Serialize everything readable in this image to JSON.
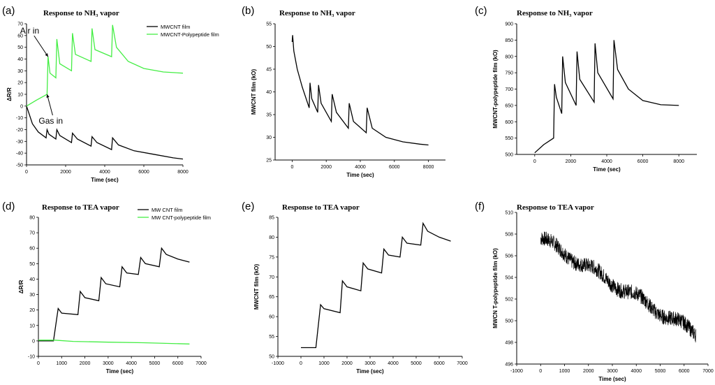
{
  "chart_data": [
    {
      "id": "a",
      "panel": "(a)",
      "type": "line",
      "title": "Response to NH₃ vapor",
      "xlabel": "Time (sec)",
      "ylabel": "ΔR/R",
      "xlim": [
        0,
        8000
      ],
      "ylim": [
        -50,
        70
      ],
      "xticks": [
        0,
        2000,
        4000,
        6000,
        8000
      ],
      "yticks": [
        -50,
        -40,
        -30,
        -20,
        -10,
        0,
        10,
        20,
        30,
        40,
        50,
        60,
        70
      ],
      "legend": "top-right",
      "series": [
        {
          "name": "MWCNT film",
          "color": "#000000",
          "points": [
            [
              0,
              0
            ],
            [
              300,
              -15
            ],
            [
              600,
              -22
            ],
            [
              1000,
              -27
            ],
            [
              1050,
              -20
            ],
            [
              1150,
              -24
            ],
            [
              1500,
              -28
            ],
            [
              1550,
              -20
            ],
            [
              1700,
              -25
            ],
            [
              2300,
              -31
            ],
            [
              2350,
              -23
            ],
            [
              2600,
              -28
            ],
            [
              3300,
              -34
            ],
            [
              3350,
              -26
            ],
            [
              3600,
              -31
            ],
            [
              4350,
              -37
            ],
            [
              4400,
              -27
            ],
            [
              4700,
              -33
            ],
            [
              5500,
              -38
            ],
            [
              6500,
              -41
            ],
            [
              7500,
              -44
            ],
            [
              8000,
              -45
            ]
          ]
        },
        {
          "name": "MWCNT-Polypeptide film",
          "color": "#44ee44",
          "points": [
            [
              0,
              0
            ],
            [
              500,
              5
            ],
            [
              1050,
              10
            ],
            [
              1100,
              42
            ],
            [
              1200,
              28
            ],
            [
              1500,
              24
            ],
            [
              1550,
              57
            ],
            [
              1700,
              36
            ],
            [
              2300,
              30
            ],
            [
              2350,
              62
            ],
            [
              2500,
              44
            ],
            [
              3300,
              38
            ],
            [
              3350,
              66
            ],
            [
              3500,
              48
            ],
            [
              4350,
              42
            ],
            [
              4400,
              69
            ],
            [
              4600,
              50
            ],
            [
              5200,
              38
            ],
            [
              6000,
              32
            ],
            [
              7000,
              29
            ],
            [
              8000,
              28
            ]
          ]
        }
      ],
      "annotations": [
        {
          "text": "Air in",
          "x": 1100,
          "y": 42
        },
        {
          "text": "Gas in",
          "x": 1050,
          "y": 10
        }
      ]
    },
    {
      "id": "b",
      "panel": "(b)",
      "type": "line",
      "title": "Response to NH₃ vapor",
      "xlabel": "Time (sec)",
      "ylabel": "MWCNT film (kO)",
      "xlim": [
        -1000,
        9000
      ],
      "ylim": [
        25,
        55
      ],
      "xticks": [
        0,
        2000,
        4000,
        6000,
        8000
      ],
      "yticks": [
        25,
        30,
        35,
        40,
        45,
        50,
        55
      ],
      "series": [
        {
          "name": "MWCNT film",
          "color": "#000000",
          "points": [
            [
              0,
              51
            ],
            [
              30,
              52.5
            ],
            [
              100,
              49
            ],
            [
              300,
              45
            ],
            [
              600,
              41
            ],
            [
              1000,
              36.5
            ],
            [
              1050,
              42
            ],
            [
              1150,
              38.5
            ],
            [
              1500,
              35.5
            ],
            [
              1550,
              41.5
            ],
            [
              1700,
              37.5
            ],
            [
              2300,
              33.5
            ],
            [
              2350,
              39.5
            ],
            [
              2600,
              35.5
            ],
            [
              3300,
              32
            ],
            [
              3350,
              37.5
            ],
            [
              3600,
              33.5
            ],
            [
              4350,
              31
            ],
            [
              4400,
              36.5
            ],
            [
              4700,
              32
            ],
            [
              5500,
              30
            ],
            [
              6500,
              29
            ],
            [
              7500,
              28.5
            ],
            [
              8000,
              28.3
            ]
          ]
        }
      ]
    },
    {
      "id": "c",
      "panel": "(c)",
      "type": "line",
      "title": "Response to NH₃ vapor",
      "xlabel": "Time (sec)",
      "ylabel": "MWCNT-polypeptide film (kO)",
      "xlim": [
        -1000,
        9000
      ],
      "ylim": [
        500,
        900
      ],
      "xticks": [
        0,
        2000,
        4000,
        6000,
        8000
      ],
      "yticks": [
        500,
        550,
        600,
        650,
        700,
        750,
        800,
        850,
        900
      ],
      "series": [
        {
          "name": "MWCNT-polypeptide film",
          "color": "#000000",
          "points": [
            [
              0,
              505
            ],
            [
              500,
              530
            ],
            [
              1050,
              550
            ],
            [
              1100,
              715
            ],
            [
              1200,
              675
            ],
            [
              1500,
              625
            ],
            [
              1550,
              800
            ],
            [
              1700,
              720
            ],
            [
              2300,
              650
            ],
            [
              2350,
              815
            ],
            [
              2500,
              730
            ],
            [
              3300,
              660
            ],
            [
              3350,
              840
            ],
            [
              3500,
              750
            ],
            [
              4350,
              670
            ],
            [
              4400,
              850
            ],
            [
              4600,
              760
            ],
            [
              5200,
              700
            ],
            [
              6000,
              665
            ],
            [
              7000,
              652
            ],
            [
              8000,
              650
            ]
          ]
        }
      ]
    },
    {
      "id": "d",
      "panel": "(d)",
      "type": "line",
      "title": "Response to TEA vapor",
      "xlabel": "Time (sec)",
      "ylabel": "ΔR/R",
      "xlim": [
        0,
        7000
      ],
      "ylim": [
        -10,
        80
      ],
      "xticks": [
        0,
        1000,
        2000,
        3000,
        4000,
        5000,
        6000,
        7000
      ],
      "yticks": [
        -10,
        0,
        10,
        20,
        30,
        40,
        50,
        60,
        70,
        80
      ],
      "legend": "top-right",
      "series": [
        {
          "name": "MW CNT film",
          "color": "#000000",
          "points": [
            [
              0,
              0
            ],
            [
              650,
              0
            ],
            [
              850,
              21
            ],
            [
              1000,
              18
            ],
            [
              1700,
              17
            ],
            [
              1800,
              32
            ],
            [
              2000,
              28
            ],
            [
              2600,
              26
            ],
            [
              2700,
              41
            ],
            [
              2900,
              37
            ],
            [
              3500,
              35
            ],
            [
              3600,
              48
            ],
            [
              3800,
              44
            ],
            [
              4300,
              43
            ],
            [
              4400,
              54
            ],
            [
              4600,
              50
            ],
            [
              5200,
              48
            ],
            [
              5300,
              60
            ],
            [
              5500,
              56
            ],
            [
              6000,
              53
            ],
            [
              6500,
              51
            ]
          ]
        },
        {
          "name": "MW CNT-polypeptide film",
          "color": "#44ee44",
          "points": [
            [
              0,
              0.5
            ],
            [
              700,
              0.5
            ],
            [
              1500,
              -0.3
            ],
            [
              3000,
              -0.8
            ],
            [
              4500,
              -1.2
            ],
            [
              6500,
              -2
            ]
          ]
        }
      ]
    },
    {
      "id": "e",
      "panel": "(e)",
      "type": "line",
      "title": "Response to TEA vapor",
      "xlabel": "Time (sec)",
      "ylabel": "MWCNT film (kO)",
      "xlim": [
        -1000,
        7000
      ],
      "ylim": [
        50,
        85
      ],
      "xticks": [
        -1000,
        0,
        1000,
        2000,
        3000,
        4000,
        5000,
        6000,
        7000
      ],
      "yticks": [
        50,
        55,
        60,
        65,
        70,
        75,
        80,
        85
      ],
      "series": [
        {
          "name": "MWCNT film",
          "color": "#000000",
          "points": [
            [
              0,
              52.2
            ],
            [
              650,
              52.2
            ],
            [
              850,
              63
            ],
            [
              1000,
              62
            ],
            [
              1700,
              61
            ],
            [
              1800,
              69
            ],
            [
              2000,
              67.5
            ],
            [
              2600,
              66.5
            ],
            [
              2700,
              73.5
            ],
            [
              2900,
              72
            ],
            [
              3500,
              71
            ],
            [
              3600,
              77
            ],
            [
              3800,
              75.5
            ],
            [
              4300,
              75
            ],
            [
              4400,
              80
            ],
            [
              4600,
              78.5
            ],
            [
              5200,
              78
            ],
            [
              5300,
              83.5
            ],
            [
              5500,
              81.5
            ],
            [
              6000,
              80
            ],
            [
              6500,
              79
            ]
          ]
        }
      ]
    },
    {
      "id": "f",
      "panel": "(f)",
      "type": "line",
      "title": "Response to TEA vapor",
      "xlabel": "Time (sec)",
      "ylabel": "MWCN T-polypeptide film (kO)",
      "xlim": [
        -1000,
        7000
      ],
      "ylim": [
        496,
        510
      ],
      "xticks": [
        -1000,
        0,
        1000,
        2000,
        3000,
        4000,
        5000,
        6000,
        7000
      ],
      "yticks": [
        496,
        498,
        500,
        502,
        504,
        506,
        508,
        510
      ],
      "noisy": true,
      "trend": {
        "start": [
          0,
          507.6
        ],
        "end": [
          6500,
          498.8
        ],
        "noise": 0.7
      }
    }
  ]
}
